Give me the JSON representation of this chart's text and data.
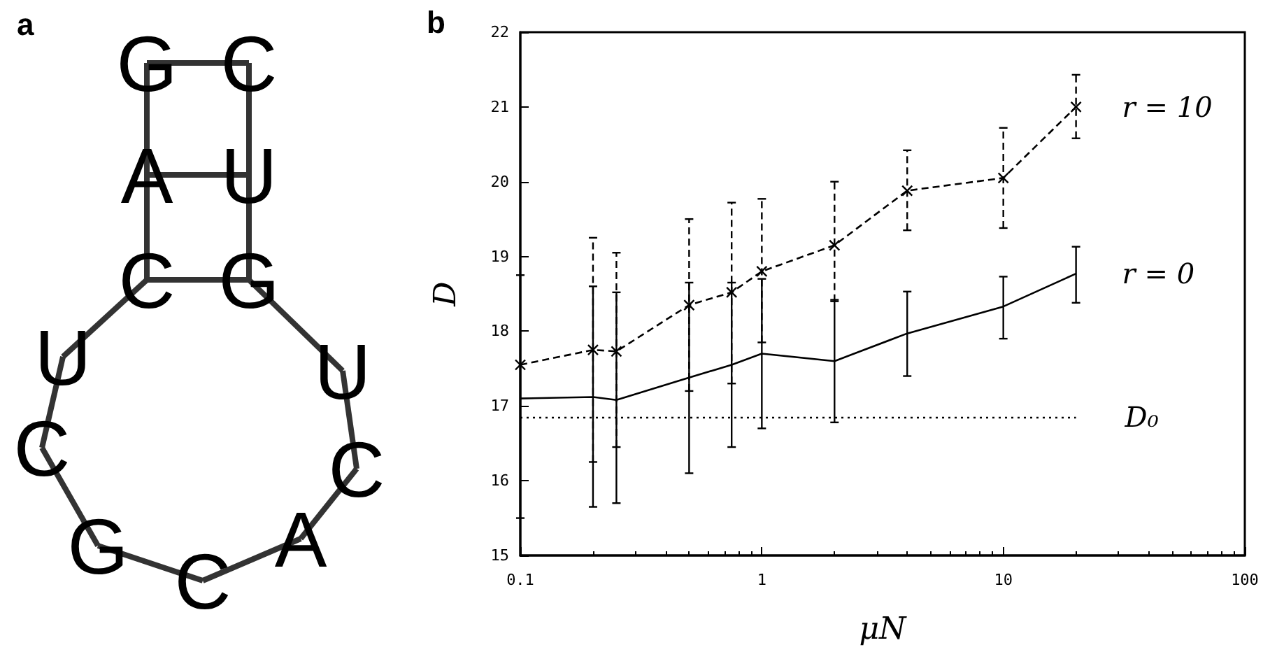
{
  "chart_data": [
    {
      "type": "other",
      "title": "a",
      "annotations": [
        "G",
        "C",
        "A",
        "U",
        "C",
        "G",
        "U",
        "C",
        "A",
        "C",
        "G",
        "C",
        "U"
      ]
    },
    {
      "type": "line",
      "title": "b",
      "xlabel": "μN",
      "ylabel": "D",
      "log": "x",
      "x": [
        0.1,
        0.2,
        0.25,
        0.5,
        0.75,
        1,
        2,
        4,
        10,
        20
      ],
      "xlim": [
        0.1,
        100
      ],
      "xticks": [
        0.1,
        1,
        10,
        100
      ],
      "ylim": [
        15,
        22
      ],
      "yticks": [
        15,
        16,
        17,
        18,
        19,
        20,
        21,
        22
      ],
      "grid": false,
      "legend": false,
      "series": [
        {
          "name": "r = 10",
          "color": "#000000",
          "marker": "cross",
          "line_style": "dashed",
          "values": [
            17.55,
            17.75,
            17.73,
            18.35,
            18.52,
            18.8,
            19.15,
            19.88,
            20.05,
            21.0
          ],
          "errors": [
            null,
            [
              16.25,
              19.25
            ],
            [
              16.45,
              19.05
            ],
            [
              17.2,
              19.5
            ],
            [
              17.3,
              19.72
            ],
            [
              17.85,
              19.77
            ],
            [
              18.4,
              20.0
            ],
            [
              19.35,
              20.42
            ],
            [
              19.38,
              20.72
            ],
            [
              20.58,
              21.43
            ]
          ]
        },
        {
          "name": "r = 0",
          "color": "#000000",
          "marker": "none",
          "line_style": "solid",
          "values": [
            17.1,
            17.12,
            17.08,
            17.38,
            17.55,
            17.7,
            17.6,
            17.97,
            18.33,
            18.77
          ],
          "errors": [
            [
              15.5,
              18.75
            ],
            [
              15.65,
              18.6
            ],
            [
              15.7,
              18.52
            ],
            [
              16.1,
              18.65
            ],
            [
              16.45,
              18.65
            ],
            [
              16.7,
              18.7
            ],
            [
              16.78,
              18.42
            ],
            [
              17.4,
              18.53
            ],
            [
              17.9,
              18.73
            ],
            [
              18.38,
              19.13
            ]
          ]
        }
      ],
      "ref_lines": [
        {
          "axis": "y",
          "value": 16.85,
          "label": "D₀",
          "line_style": "dotted",
          "color": "#000000"
        }
      ]
    }
  ]
}
